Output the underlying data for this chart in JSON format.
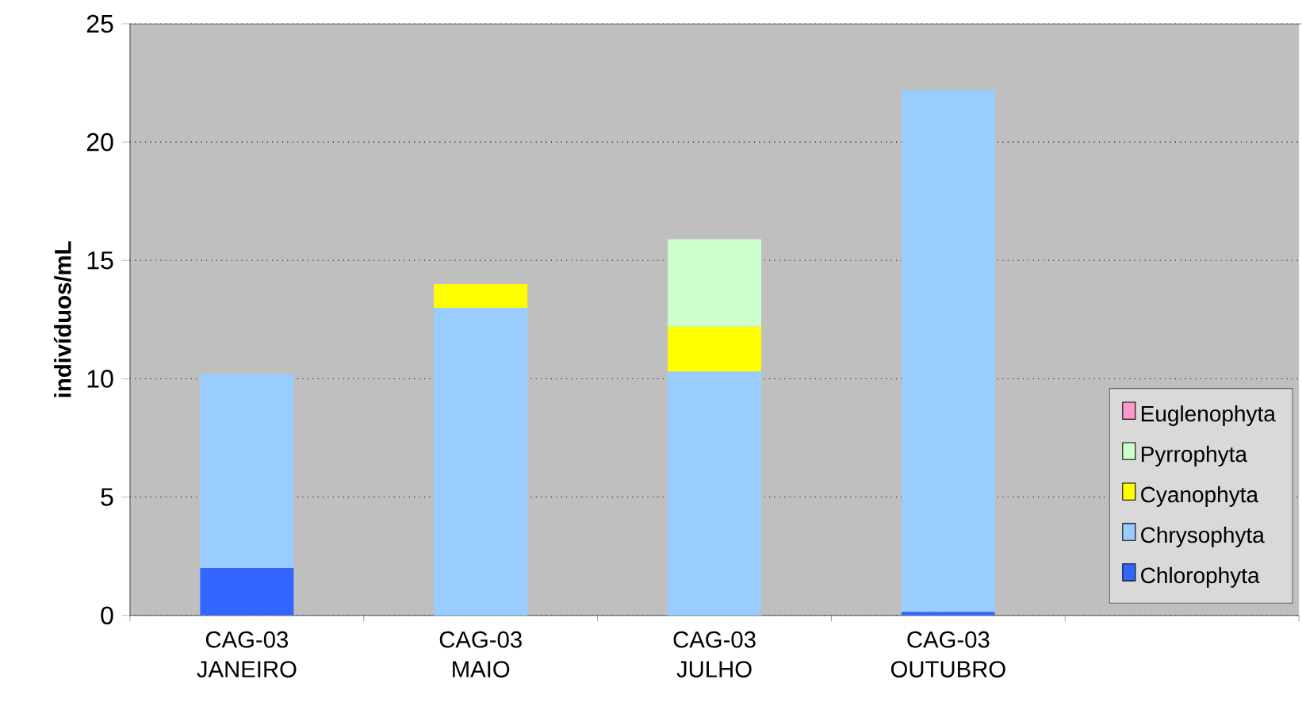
{
  "chart_data": {
    "type": "bar",
    "stacked": true,
    "ylabel": "indivíduos/mL",
    "categories": [
      "CAG-03 JANEIRO",
      "CAG-03 MAIO",
      "CAG-03 JULHO",
      "CAG-03 OUTUBRO",
      null
    ],
    "series": [
      {
        "name": "Chlorophyta",
        "color": "#3366ff",
        "values": [
          2.0,
          0,
          0,
          0.15,
          null
        ]
      },
      {
        "name": "Chrysophyta",
        "color": "#99ccff",
        "values": [
          8.2,
          13.0,
          10.3,
          22.05,
          null
        ]
      },
      {
        "name": "Cyanophyta",
        "color": "#ffff00",
        "values": [
          0,
          1.0,
          1.9,
          0,
          null
        ]
      },
      {
        "name": "Pyrrophyta",
        "color": "#ccffcc",
        "values": [
          0,
          0,
          3.7,
          0,
          null
        ]
      },
      {
        "name": "Euglenophyta",
        "color": "#ff99cc",
        "values": [
          0,
          0,
          0,
          0,
          null
        ]
      }
    ],
    "ylim": [
      0,
      25
    ],
    "yticks": [
      0,
      5,
      10,
      15,
      20,
      25
    ],
    "grid": "y",
    "legend": "right"
  }
}
